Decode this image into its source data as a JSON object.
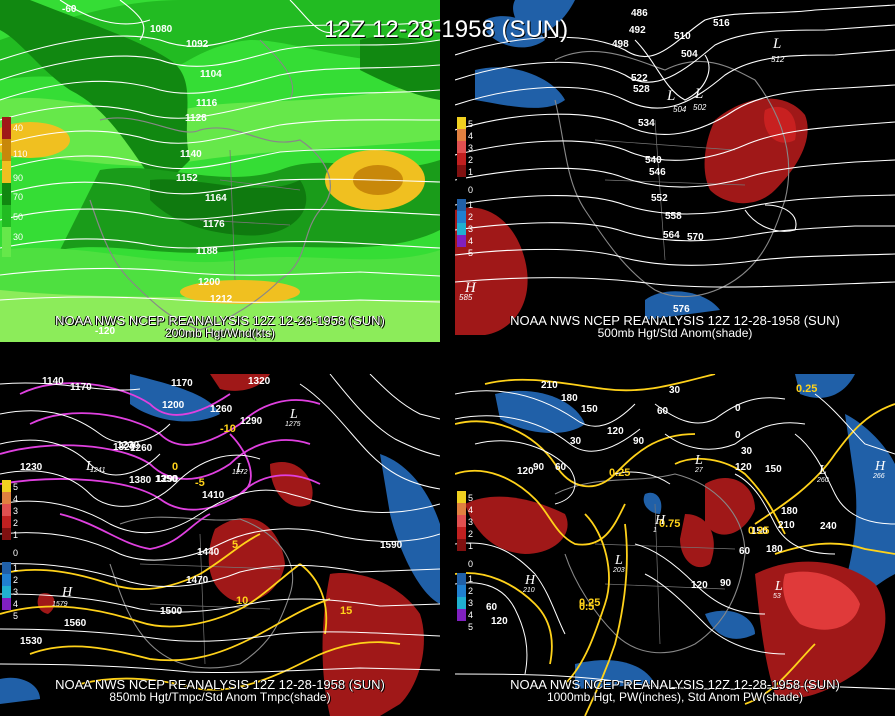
{
  "title": "12Z 12-28-1958 (SUN)",
  "colors": {
    "background": "#000000",
    "contour_white": "#ffffff",
    "contour_yellow": "#ffd21a",
    "contour_magenta": "#e040e0",
    "anomaly_pos": "#a01818",
    "anomaly_neg": "#2060a8",
    "wind_light": "#33dd33",
    "wind_dark": "#118811",
    "wind_yellow": "#f0c020"
  },
  "panels": [
    {
      "id": "200mb",
      "caption_line1": "NOAA NWS NCEP REANALYSIS 12Z 12-28-1958 (SUN)",
      "caption_line2": "200mb Hgt/Wnd(kts)",
      "contour_labels": [
        "1080",
        "1092",
        "1104",
        "1116",
        "1128",
        "1140",
        "1152",
        "1164",
        "1176",
        "1188",
        "1200",
        "1212"
      ],
      "scale_labels": [
        "40",
        "110",
        "90",
        "70",
        "50",
        "30"
      ],
      "longitude_labels": [
        "-120",
        "-60"
      ]
    },
    {
      "id": "500mb",
      "caption_line1": "NOAA NWS NCEP REANALYSIS 12Z 12-28-1958 (SUN)",
      "caption_line2": "500mb Hgt/Std Anom(shade)",
      "contour_labels": [
        "486",
        "492",
        "498",
        "504",
        "510",
        "516",
        "522",
        "528",
        "534",
        "540",
        "546",
        "552",
        "558",
        "564",
        "570",
        "576"
      ],
      "scale_labels": [
        "5",
        "4",
        "3",
        "2",
        "1",
        "0",
        "1",
        "2",
        "3",
        "4",
        "5"
      ],
      "pressure_centers": [
        "H",
        "L",
        "L",
        "L"
      ],
      "center_values": [
        "585",
        "502",
        "512",
        "504"
      ]
    },
    {
      "id": "850mb",
      "caption_line1": "NOAA NWS NCEP REANALYSIS 12Z 12-28-1958 (SUN)",
      "caption_line2": "850mb Hgt/Tmpc/Std Anom Tmpc(shade)",
      "contour_labels": [
        "1140",
        "1170",
        "1200",
        "1230",
        "1260",
        "1290",
        "1320",
        "1350",
        "1380",
        "1410",
        "1440",
        "1470",
        "1500",
        "1530",
        "1560",
        "1590",
        "1170",
        "1260",
        "1320",
        "1230",
        "1290"
      ],
      "temp_labels": [
        "-10",
        "-5",
        "0",
        "5",
        "10",
        "15"
      ],
      "scale_labels": [
        "5",
        "4",
        "3",
        "2",
        "1",
        "0",
        "1",
        "2",
        "3",
        "4",
        "5"
      ],
      "pressure_centers": [
        "H",
        "L",
        "L",
        "L"
      ],
      "center_values": [
        "1579",
        "1275",
        "1272",
        "1241"
      ]
    },
    {
      "id": "1000mb",
      "caption_line1": "NOAA NWS NCEP REANALYSIS 12Z 12-28-1958 (SUN)",
      "caption_line2": "1000mb Hgt, PW(inches), Std Anom PW(shade)",
      "contour_labels": [
        "210",
        "180",
        "150",
        "120",
        "90",
        "60",
        "30",
        "0",
        "120",
        "90",
        "60",
        "30",
        "120",
        "150",
        "180",
        "210",
        "240",
        "180",
        "150",
        "120",
        "90",
        "60",
        "30",
        "0",
        "60",
        "120"
      ],
      "pw_labels": [
        "0.25",
        "0.25",
        "0.5",
        "0.75",
        "0.25",
        "0.25"
      ],
      "scale_labels": [
        "5",
        "4",
        "3",
        "2",
        "1",
        "0",
        "1",
        "2",
        "3",
        "4",
        "5"
      ],
      "pressure_centers": [
        "H",
        "H",
        "L",
        "L",
        "L",
        "H",
        "L"
      ],
      "center_values": [
        "266",
        "210",
        "203",
        "260",
        "27",
        "1",
        "53"
      ]
    }
  ]
}
